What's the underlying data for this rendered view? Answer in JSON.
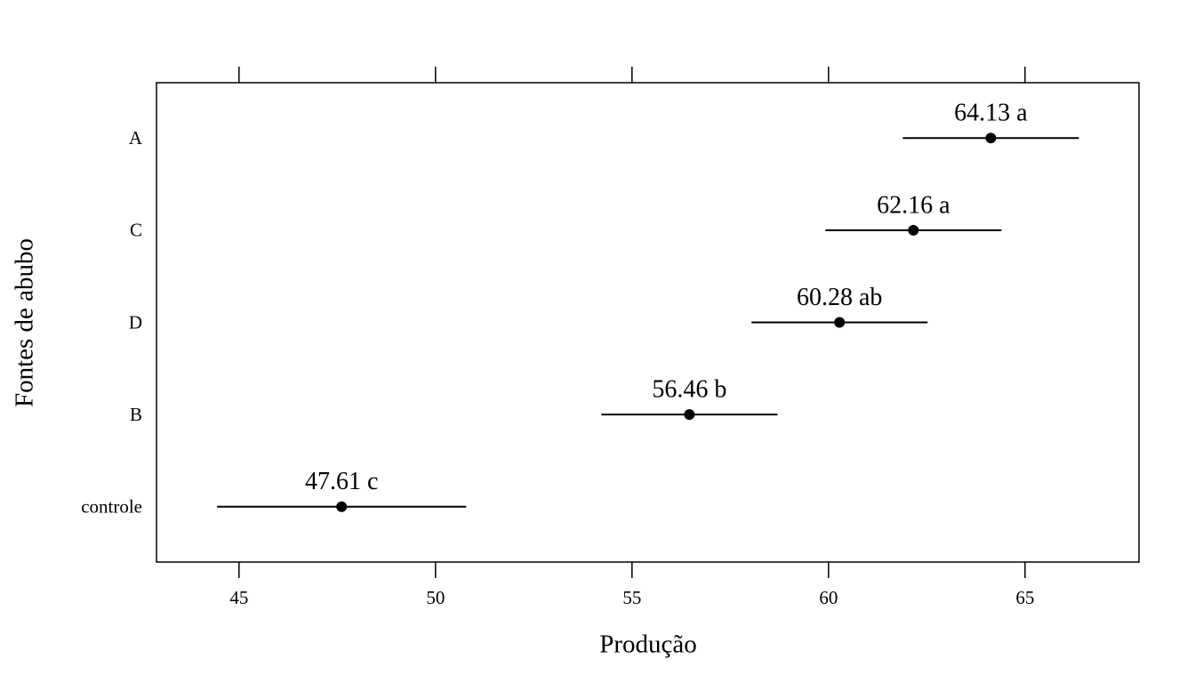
{
  "chart_data": {
    "type": "dotplot",
    "x_label": "Produção",
    "y_label": "Fontes de abubo",
    "categories": [
      "A",
      "C",
      "D",
      "B",
      "controle"
    ],
    "values": [
      64.13,
      62.16,
      60.28,
      56.46,
      47.61
    ],
    "value_labels": [
      "64.13 a",
      "62.16 a",
      "60.28 ab",
      "56.46 b",
      "47.61 c"
    ],
    "lower": [
      61.89,
      59.92,
      58.04,
      54.22,
      44.44
    ],
    "upper": [
      66.37,
      64.4,
      62.52,
      58.7,
      50.78
    ],
    "color": "#000000",
    "xlim": [
      42.9,
      67.9
    ],
    "xticks": [
      45,
      50,
      55,
      60,
      65
    ]
  }
}
